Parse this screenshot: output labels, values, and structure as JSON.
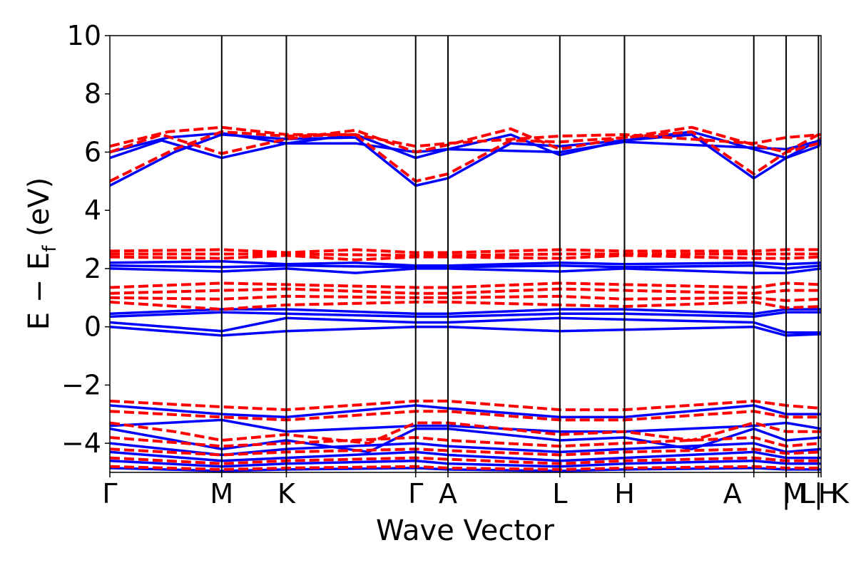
{
  "chart_data": {
    "type": "line",
    "xlabel": "Wave Vector",
    "ylabel": {
      "main": "E − E",
      "sub": "f",
      "tail": " (eV)"
    },
    "ylim": [
      -5,
      10
    ],
    "yticks": [
      {
        "value": -4,
        "label": "−4"
      },
      {
        "value": -2,
        "label": "−2"
      },
      {
        "value": 0,
        "label": "0"
      },
      {
        "value": 2,
        "label": "2"
      },
      {
        "value": 4,
        "label": "4"
      },
      {
        "value": 6,
        "label": "6"
      },
      {
        "value": 8,
        "label": "8"
      },
      {
        "value": 10,
        "label": "10"
      }
    ],
    "xlim": [
      0,
      11
    ],
    "kpoints": [
      {
        "x": 0.0,
        "label": "Γ"
      },
      {
        "x": 1.73,
        "label": "M"
      },
      {
        "x": 2.73,
        "label": "K"
      },
      {
        "x": 4.73,
        "label": "Γ"
      },
      {
        "x": 5.23,
        "label": "A"
      },
      {
        "x": 6.96,
        "label": "L"
      },
      {
        "x": 7.96,
        "label": "H"
      },
      {
        "x": 9.96,
        "label": "A"
      },
      {
        "x": 10.46,
        "label": "|"
      },
      {
        "x": 10.46,
        "label": "M"
      },
      {
        "x": 10.46,
        "label": "L"
      },
      {
        "x": 10.96,
        "label": "|"
      },
      {
        "x": 10.96,
        "label": "K"
      },
      {
        "x": 11.0,
        "label": "H"
      }
    ],
    "series": [
      {
        "style": "spin-up",
        "color": "#0000ff",
        "dash": "solid",
        "bands": [
          {
            "x": [
              0,
              1.0,
              1.73,
              2.73,
              3.8,
              4.73,
              5.23,
              6.2,
              6.96,
              7.96,
              9.0,
              9.96,
              10.46,
              10.96,
              11.0
            ],
            "y": [
              4.85,
              6.0,
              6.6,
              6.45,
              6.5,
              4.85,
              5.1,
              6.3,
              6.2,
              6.4,
              6.6,
              5.1,
              5.8,
              6.2,
              6.4
            ]
          },
          {
            "x": [
              0,
              0.8,
              1.73,
              2.73,
              3.8,
              4.73,
              5.23,
              6.2,
              6.96,
              7.96,
              9.0,
              9.96,
              10.46,
              10.96,
              11.0
            ],
            "y": [
              5.8,
              6.4,
              5.8,
              6.3,
              6.6,
              5.8,
              6.1,
              6.6,
              5.9,
              6.4,
              6.7,
              6.1,
              5.8,
              6.4,
              6.4
            ]
          },
          {
            "x": [
              0,
              0.9,
              1.73,
              2.73,
              3.8,
              4.73,
              5.23,
              6.96,
              7.96,
              9.96,
              10.46,
              11.0
            ],
            "y": [
              6.0,
              6.5,
              6.65,
              6.3,
              6.3,
              6.0,
              6.1,
              6.0,
              6.35,
              6.15,
              6.1,
              6.4
            ]
          },
          {
            "x": [
              0,
              1.73,
              2.73,
              3.8,
              4.73,
              5.23,
              6.96,
              7.96,
              9.96,
              10.46,
              11.0
            ],
            "y": [
              2.2,
              2.25,
              2.15,
              2.2,
              2.1,
              2.1,
              2.2,
              2.15,
              2.2,
              2.15,
              2.2
            ]
          },
          {
            "x": [
              0,
              1.73,
              2.73,
              3.8,
              4.73,
              5.23,
              6.96,
              7.96,
              9.96,
              10.46,
              11.0
            ],
            "y": [
              2.0,
              1.9,
              2.0,
              1.85,
              2.0,
              2.0,
              1.9,
              2.0,
              1.85,
              1.85,
              2.0
            ]
          },
          {
            "x": [
              0,
              1.73,
              2.73,
              4.73,
              5.23,
              6.96,
              7.96,
              9.96,
              10.46,
              11.0
            ],
            "y": [
              2.1,
              2.05,
              2.1,
              2.05,
              2.05,
              2.1,
              2.05,
              2.1,
              2.0,
              2.1
            ]
          },
          {
            "x": [
              0,
              1.73,
              2.73,
              4.73,
              5.23,
              6.96,
              7.96,
              9.96,
              10.46,
              11.0
            ],
            "y": [
              0.45,
              0.6,
              0.6,
              0.45,
              0.45,
              0.6,
              0.6,
              0.45,
              0.6,
              0.6
            ]
          },
          {
            "x": [
              0,
              1.73,
              2.73,
              4.73,
              5.23,
              6.96,
              7.96,
              9.96,
              10.46,
              11.0
            ],
            "y": [
              0.35,
              0.5,
              0.45,
              0.35,
              0.35,
              0.45,
              0.45,
              0.35,
              0.5,
              0.5
            ]
          },
          {
            "x": [
              0,
              1.73,
              2.73,
              4.73,
              5.23,
              6.96,
              7.96,
              9.96,
              10.46,
              11.0
            ],
            "y": [
              0.15,
              -0.15,
              0.3,
              0.15,
              0.15,
              0.3,
              0.25,
              0.15,
              -0.2,
              -0.2
            ]
          },
          {
            "x": [
              0,
              1.73,
              2.73,
              4.73,
              5.23,
              6.96,
              7.96,
              9.96,
              10.46,
              11.0
            ],
            "y": [
              0.0,
              -0.3,
              -0.15,
              0.0,
              0.0,
              -0.15,
              -0.1,
              0.0,
              -0.3,
              -0.25
            ]
          },
          {
            "x": [
              0,
              1.73,
              2.73,
              4.73,
              5.23,
              6.96,
              7.96,
              9.96,
              10.46,
              11.0
            ],
            "y": [
              -2.7,
              -3.0,
              -3.1,
              -2.7,
              -2.8,
              -3.1,
              -3.1,
              -2.7,
              -3.0,
              -3.0
            ]
          },
          {
            "x": [
              0,
              1.73,
              2.73,
              4.73,
              5.23,
              6.96,
              7.96,
              9.96,
              10.46,
              11.0
            ],
            "y": [
              -3.4,
              -3.2,
              -3.6,
              -3.4,
              -3.4,
              -3.6,
              -3.6,
              -3.4,
              -3.3,
              -3.5
            ]
          },
          {
            "x": [
              0,
              1.0,
              1.73,
              2.73,
              4.0,
              4.73,
              5.23,
              6.96,
              7.96,
              9.0,
              9.96,
              10.46,
              11.0
            ],
            "y": [
              -3.5,
              -3.9,
              -4.2,
              -3.9,
              -4.3,
              -3.5,
              -3.5,
              -3.9,
              -3.8,
              -4.2,
              -3.5,
              -3.9,
              -3.8
            ]
          },
          {
            "x": [
              0,
              1.73,
              2.73,
              4.73,
              5.23,
              6.96,
              7.96,
              9.96,
              10.46,
              11.0
            ],
            "y": [
              -4.0,
              -4.4,
              -4.2,
              -4.0,
              -4.1,
              -4.3,
              -4.2,
              -4.0,
              -4.3,
              -4.2
            ]
          },
          {
            "x": [
              0,
              1.73,
              2.73,
              4.73,
              5.23,
              6.96,
              7.96,
              9.96,
              10.46,
              11.0
            ],
            "y": [
              -4.3,
              -4.6,
              -4.5,
              -4.3,
              -4.4,
              -4.6,
              -4.5,
              -4.3,
              -4.5,
              -4.5
            ]
          },
          {
            "x": [
              0,
              1.73,
              2.73,
              4.73,
              5.23,
              6.96,
              7.96,
              9.96,
              10.46,
              11.0
            ],
            "y": [
              -4.6,
              -4.8,
              -4.7,
              -4.6,
              -4.7,
              -4.8,
              -4.7,
              -4.6,
              -4.7,
              -4.7
            ]
          },
          {
            "x": [
              0,
              1.73,
              2.73,
              4.73,
              5.23,
              6.96,
              7.96,
              9.96,
              10.46,
              11.0
            ],
            "y": [
              -4.85,
              -4.95,
              -4.9,
              -4.85,
              -4.9,
              -4.95,
              -4.9,
              -4.85,
              -4.9,
              -4.9
            ]
          }
        ]
      },
      {
        "style": "spin-down",
        "color": "#ff0000",
        "dash": "dashed",
        "bands": [
          {
            "x": [
              0,
              1.0,
              1.73,
              2.73,
              3.8,
              4.73,
              5.23,
              6.2,
              6.96,
              7.96,
              9.0,
              9.96,
              10.46,
              10.96,
              11.0
            ],
            "y": [
              5.0,
              6.1,
              6.7,
              6.55,
              6.6,
              5.0,
              5.25,
              6.4,
              6.35,
              6.5,
              6.7,
              5.25,
              6.0,
              6.3,
              6.5
            ]
          },
          {
            "x": [
              0,
              0.8,
              1.73,
              2.73,
              3.8,
              4.73,
              5.23,
              6.2,
              6.96,
              7.96,
              9.0,
              9.96,
              10.46,
              10.96,
              11.0
            ],
            "y": [
              6.0,
              6.6,
              5.95,
              6.45,
              6.75,
              6.0,
              6.25,
              6.8,
              6.1,
              6.5,
              6.85,
              6.25,
              6.0,
              6.6,
              6.5
            ]
          },
          {
            "x": [
              0,
              0.9,
              1.73,
              2.73,
              3.8,
              4.73,
              5.23,
              6.96,
              7.96,
              9.96,
              10.46,
              11.0
            ],
            "y": [
              6.2,
              6.7,
              6.85,
              6.6,
              6.6,
              6.2,
              6.3,
              6.55,
              6.6,
              6.3,
              6.5,
              6.6
            ]
          },
          {
            "x": [
              0,
              1.73,
              2.73,
              3.8,
              4.73,
              5.23,
              6.96,
              7.96,
              9.96,
              10.46,
              11.0
            ],
            "y": [
              2.6,
              2.65,
              2.55,
              2.65,
              2.55,
              2.55,
              2.65,
              2.6,
              2.6,
              2.65,
              2.65
            ]
          },
          {
            "x": [
              0,
              1.73,
              2.73,
              3.8,
              4.73,
              5.23,
              6.96,
              7.96,
              9.96,
              10.46,
              11.0
            ],
            "y": [
              2.4,
              2.35,
              2.45,
              2.3,
              2.4,
              2.4,
              2.35,
              2.45,
              2.35,
              2.35,
              2.4
            ]
          },
          {
            "x": [
              0,
              1.73,
              2.73,
              4.73,
              5.23,
              6.96,
              7.96,
              9.96,
              10.46,
              11.0
            ],
            "y": [
              2.5,
              2.5,
              2.5,
              2.45,
              2.45,
              2.5,
              2.5,
              2.5,
              2.5,
              2.5
            ]
          },
          {
            "x": [
              0,
              1.73,
              2.73,
              4.73,
              5.23,
              6.96,
              7.96,
              9.96,
              10.46,
              11.0
            ],
            "y": [
              1.35,
              1.5,
              1.45,
              1.35,
              1.35,
              1.5,
              1.45,
              1.35,
              1.5,
              1.45
            ]
          },
          {
            "x": [
              0,
              1.73,
              2.73,
              4.73,
              5.23,
              6.96,
              7.96,
              9.96,
              10.46,
              11.0
            ],
            "y": [
              1.15,
              1.25,
              1.3,
              1.15,
              1.15,
              1.3,
              1.25,
              1.15,
              1.25,
              1.25
            ]
          },
          {
            "x": [
              0,
              1.73,
              2.73,
              4.73,
              5.23,
              6.96,
              7.96,
              9.96,
              10.46,
              11.0
            ],
            "y": [
              1.0,
              0.95,
              1.05,
              1.0,
              1.0,
              1.05,
              0.95,
              1.0,
              0.9,
              0.95
            ]
          },
          {
            "x": [
              0,
              1.73,
              2.73,
              4.73,
              5.23,
              6.96,
              7.96,
              9.96,
              10.46,
              11.0
            ],
            "y": [
              0.85,
              0.6,
              0.75,
              0.85,
              0.85,
              0.75,
              0.7,
              0.85,
              0.65,
              0.7
            ]
          },
          {
            "x": [
              0,
              1.73,
              2.73,
              4.73,
              5.23,
              6.96,
              7.96,
              9.96,
              10.46,
              11.0
            ],
            "y": [
              -2.55,
              -2.75,
              -2.85,
              -2.55,
              -2.55,
              -2.85,
              -2.85,
              -2.55,
              -2.7,
              -2.8
            ]
          },
          {
            "x": [
              0,
              1.73,
              2.73,
              4.73,
              5.23,
              6.96,
              7.96,
              9.96,
              10.46,
              11.0
            ],
            "y": [
              -2.9,
              -3.1,
              -3.2,
              -2.9,
              -2.9,
              -3.2,
              -3.2,
              -2.9,
              -3.1,
              -3.1
            ]
          },
          {
            "x": [
              0,
              1.0,
              1.73,
              2.73,
              4.0,
              4.73,
              5.23,
              6.96,
              7.96,
              9.0,
              9.96,
              10.46,
              11.0
            ],
            "y": [
              -3.3,
              -3.6,
              -3.9,
              -3.7,
              -4.0,
              -3.3,
              -3.3,
              -3.7,
              -3.6,
              -3.9,
              -3.3,
              -3.6,
              -3.6
            ]
          },
          {
            "x": [
              0,
              1.73,
              2.73,
              4.73,
              5.23,
              6.96,
              7.96,
              9.96,
              10.46,
              11.0
            ],
            "y": [
              -3.8,
              -4.1,
              -4.0,
              -3.8,
              -3.9,
              -4.1,
              -4.0,
              -3.8,
              -4.1,
              -4.0
            ]
          },
          {
            "x": [
              0,
              1.73,
              2.73,
              4.73,
              5.23,
              6.96,
              7.96,
              9.96,
              10.46,
              11.0
            ],
            "y": [
              -4.2,
              -4.4,
              -4.3,
              -4.2,
              -4.25,
              -4.4,
              -4.3,
              -4.2,
              -4.35,
              -4.3
            ]
          },
          {
            "x": [
              0,
              1.73,
              2.73,
              4.73,
              5.23,
              6.96,
              7.96,
              9.96,
              10.46,
              11.0
            ],
            "y": [
              -4.5,
              -4.7,
              -4.6,
              -4.5,
              -4.55,
              -4.7,
              -4.6,
              -4.5,
              -4.6,
              -4.6
            ]
          },
          {
            "x": [
              0,
              1.73,
              2.73,
              4.73,
              5.23,
              6.96,
              7.96,
              9.96,
              10.46,
              11.0
            ],
            "y": [
              -4.8,
              -4.9,
              -4.85,
              -4.8,
              -4.85,
              -4.9,
              -4.85,
              -4.8,
              -4.85,
              -4.85
            ]
          }
        ]
      }
    ]
  }
}
